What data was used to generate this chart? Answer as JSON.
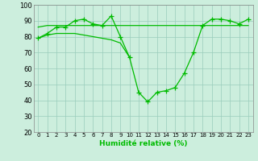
{
  "x": [
    0,
    1,
    2,
    3,
    4,
    5,
    6,
    7,
    8,
    9,
    10,
    11,
    12,
    13,
    14,
    15,
    16,
    17,
    18,
    19,
    20,
    21,
    22,
    23
  ],
  "line_jagged": [
    79,
    82,
    86,
    86,
    90,
    91,
    88,
    87,
    93,
    80,
    67,
    45,
    39,
    45,
    46,
    48,
    57,
    70,
    87,
    91,
    91,
    90,
    88,
    91
  ],
  "line_smooth_x": [
    0,
    1,
    2,
    3,
    4,
    5,
    6,
    7,
    8,
    9,
    10
  ],
  "line_smooth_y": [
    79,
    81,
    82,
    82,
    82,
    81,
    80,
    79,
    78,
    76,
    67
  ],
  "line_flat_x": [
    0,
    1,
    2,
    3,
    4,
    5,
    6,
    7,
    8,
    9,
    10,
    11,
    12,
    13,
    14,
    15,
    16,
    17,
    18,
    19,
    20,
    21,
    22,
    23
  ],
  "line_flat_y": [
    86,
    87,
    87,
    87,
    87,
    87,
    87,
    87,
    87,
    87,
    87,
    87,
    87,
    87,
    87,
    87,
    87,
    87,
    87,
    87,
    87,
    87,
    87,
    87
  ],
  "xlabel": "Humidité relative (%)",
  "ylim": [
    20,
    100
  ],
  "yticks": [
    20,
    30,
    40,
    50,
    60,
    70,
    80,
    90,
    100
  ],
  "xticks": [
    0,
    1,
    2,
    3,
    4,
    5,
    6,
    7,
    8,
    9,
    10,
    11,
    12,
    13,
    14,
    15,
    16,
    17,
    18,
    19,
    20,
    21,
    22,
    23
  ],
  "line_color": "#00bb00",
  "bg_color": "#cceedd",
  "grid_color": "#99ccbb",
  "markersize": 4
}
